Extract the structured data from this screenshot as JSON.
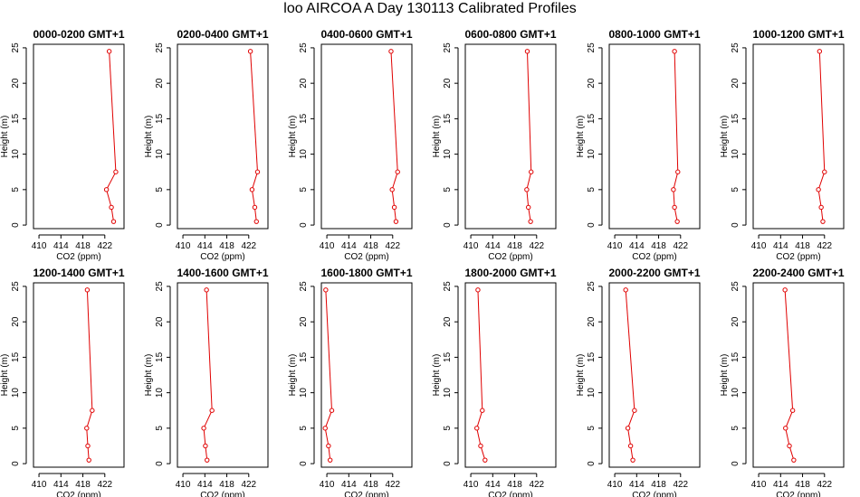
{
  "figure": {
    "title": "loo AIRCOA A  Day 130113  Calibrated Profiles"
  },
  "chart_data": [
    {
      "type": "line",
      "title": "0000-0200 GMT+1",
      "xlabel": "CO2 (ppm)",
      "ylabel": "Height (m)",
      "x": [
        422.8,
        424.0,
        422.3,
        423.2,
        423.6
      ],
      "y": [
        24.5,
        7.5,
        5.0,
        2.5,
        0.5
      ],
      "xlim": [
        409,
        425.5
      ],
      "ylim": [
        -0.5,
        25.5
      ],
      "xticks": [
        410,
        414,
        418,
        422
      ],
      "yticks": [
        0,
        5,
        10,
        15,
        20,
        25
      ],
      "color": "#e00000"
    },
    {
      "type": "line",
      "title": "0200-0400 GMT+1",
      "xlabel": "CO2 (ppm)",
      "ylabel": "Height (m)",
      "x": [
        422.3,
        423.6,
        422.6,
        423.1,
        423.4
      ],
      "y": [
        24.5,
        7.5,
        5.0,
        2.5,
        0.5
      ],
      "xlim": [
        409,
        425.5
      ],
      "ylim": [
        -0.5,
        25.5
      ],
      "xticks": [
        410,
        414,
        418,
        422
      ],
      "yticks": [
        0,
        5,
        10,
        15,
        20,
        25
      ],
      "color": "#e00000"
    },
    {
      "type": "line",
      "title": "0400-0600 GMT+1",
      "xlabel": "CO2 (ppm)",
      "ylabel": "Height (m)",
      "x": [
        421.7,
        422.9,
        421.9,
        422.3,
        422.6
      ],
      "y": [
        24.5,
        7.5,
        5.0,
        2.5,
        0.5
      ],
      "xlim": [
        409,
        425.5
      ],
      "ylim": [
        -0.5,
        25.5
      ],
      "xticks": [
        410,
        414,
        418,
        422
      ],
      "yticks": [
        0,
        5,
        10,
        15,
        20,
        25
      ],
      "color": "#e00000"
    },
    {
      "type": "line",
      "title": "0600-0800 GMT+1",
      "xlabel": "CO2 (ppm)",
      "ylabel": "Height (m)",
      "x": [
        420.3,
        421.0,
        420.2,
        420.5,
        420.9
      ],
      "y": [
        24.5,
        7.5,
        5.0,
        2.5,
        0.5
      ],
      "xlim": [
        409,
        425.5
      ],
      "ylim": [
        -0.5,
        25.5
      ],
      "xticks": [
        410,
        414,
        418,
        422
      ],
      "yticks": [
        0,
        5,
        10,
        15,
        20,
        25
      ],
      "color": "#e00000"
    },
    {
      "type": "line",
      "title": "0800-1000 GMT+1",
      "xlabel": "CO2 (ppm)",
      "ylabel": "Height (m)",
      "x": [
        420.9,
        421.5,
        420.7,
        420.9,
        421.4
      ],
      "y": [
        24.5,
        7.5,
        5.0,
        2.5,
        0.5
      ],
      "xlim": [
        409,
        425.5
      ],
      "ylim": [
        -0.5,
        25.5
      ],
      "xticks": [
        410,
        414,
        418,
        422
      ],
      "yticks": [
        0,
        5,
        10,
        15,
        20,
        25
      ],
      "color": "#e00000"
    },
    {
      "type": "line",
      "title": "1000-1200 GMT+1",
      "xlabel": "CO2 (ppm)",
      "ylabel": "Height (m)",
      "x": [
        421.1,
        422.0,
        420.9,
        421.4,
        421.7
      ],
      "y": [
        24.5,
        7.5,
        5.0,
        2.5,
        0.5
      ],
      "xlim": [
        409,
        425.5
      ],
      "ylim": [
        -0.5,
        25.5
      ],
      "xticks": [
        410,
        414,
        418,
        422
      ],
      "yticks": [
        0,
        5,
        10,
        15,
        20,
        25
      ],
      "color": "#e00000"
    },
    {
      "type": "line",
      "title": "1200-1400 GMT+1",
      "xlabel": "CO2 (ppm)",
      "ylabel": "Height (m)",
      "x": [
        418.8,
        419.7,
        418.7,
        418.9,
        419.1
      ],
      "y": [
        24.5,
        7.5,
        5.0,
        2.5,
        0.5
      ],
      "xlim": [
        409,
        425.5
      ],
      "ylim": [
        -0.5,
        25.5
      ],
      "xticks": [
        410,
        414,
        418,
        422
      ],
      "yticks": [
        0,
        5,
        10,
        15,
        20,
        25
      ],
      "color": "#e00000"
    },
    {
      "type": "line",
      "title": "1400-1600 GMT+1",
      "xlabel": "CO2 (ppm)",
      "ylabel": "Height (m)",
      "x": [
        414.3,
        415.3,
        413.8,
        414.1,
        414.4
      ],
      "y": [
        24.5,
        7.5,
        5.0,
        2.5,
        0.5
      ],
      "xlim": [
        409,
        425.5
      ],
      "ylim": [
        -0.5,
        25.5
      ],
      "xticks": [
        410,
        414,
        418,
        422
      ],
      "yticks": [
        0,
        5,
        10,
        15,
        20,
        25
      ],
      "color": "#e00000"
    },
    {
      "type": "line",
      "title": "1600-1800 GMT+1",
      "xlabel": "CO2 (ppm)",
      "ylabel": "Height (m)",
      "x": [
        409.8,
        410.9,
        409.7,
        410.3,
        410.6
      ],
      "y": [
        24.5,
        7.5,
        5.0,
        2.5,
        0.5
      ],
      "xlim": [
        409,
        425.5
      ],
      "ylim": [
        -0.5,
        25.5
      ],
      "xticks": [
        410,
        414,
        418,
        422
      ],
      "yticks": [
        0,
        5,
        10,
        15,
        20,
        25
      ],
      "color": "#e00000"
    },
    {
      "type": "line",
      "title": "1800-2000 GMT+1",
      "xlabel": "CO2 (ppm)",
      "ylabel": "Height (m)",
      "x": [
        411.3,
        412.1,
        411.1,
        411.8,
        412.6
      ],
      "y": [
        24.5,
        7.5,
        5.0,
        2.5,
        0.5
      ],
      "xlim": [
        409,
        425.5
      ],
      "ylim": [
        -0.5,
        25.5
      ],
      "xticks": [
        410,
        414,
        418,
        422
      ],
      "yticks": [
        0,
        5,
        10,
        15,
        20,
        25
      ],
      "color": "#e00000"
    },
    {
      "type": "line",
      "title": "2000-2200 GMT+1",
      "xlabel": "CO2 (ppm)",
      "ylabel": "Height (m)",
      "x": [
        412.0,
        413.6,
        412.4,
        412.9,
        413.3
      ],
      "y": [
        24.5,
        7.5,
        5.0,
        2.5,
        0.5
      ],
      "xlim": [
        409,
        425.5
      ],
      "ylim": [
        -0.5,
        25.5
      ],
      "xticks": [
        410,
        414,
        418,
        422
      ],
      "yticks": [
        0,
        5,
        10,
        15,
        20,
        25
      ],
      "color": "#e00000"
    },
    {
      "type": "line",
      "title": "2200-2400 GMT+1",
      "xlabel": "CO2 (ppm)",
      "ylabel": "Height (m)",
      "x": [
        414.8,
        416.2,
        414.9,
        415.6,
        416.4
      ],
      "y": [
        24.5,
        7.5,
        5.0,
        2.5,
        0.5
      ],
      "xlim": [
        409,
        425.5
      ],
      "ylim": [
        -0.5,
        25.5
      ],
      "xticks": [
        410,
        414,
        418,
        422
      ],
      "yticks": [
        0,
        5,
        10,
        15,
        20,
        25
      ],
      "color": "#e00000"
    }
  ]
}
